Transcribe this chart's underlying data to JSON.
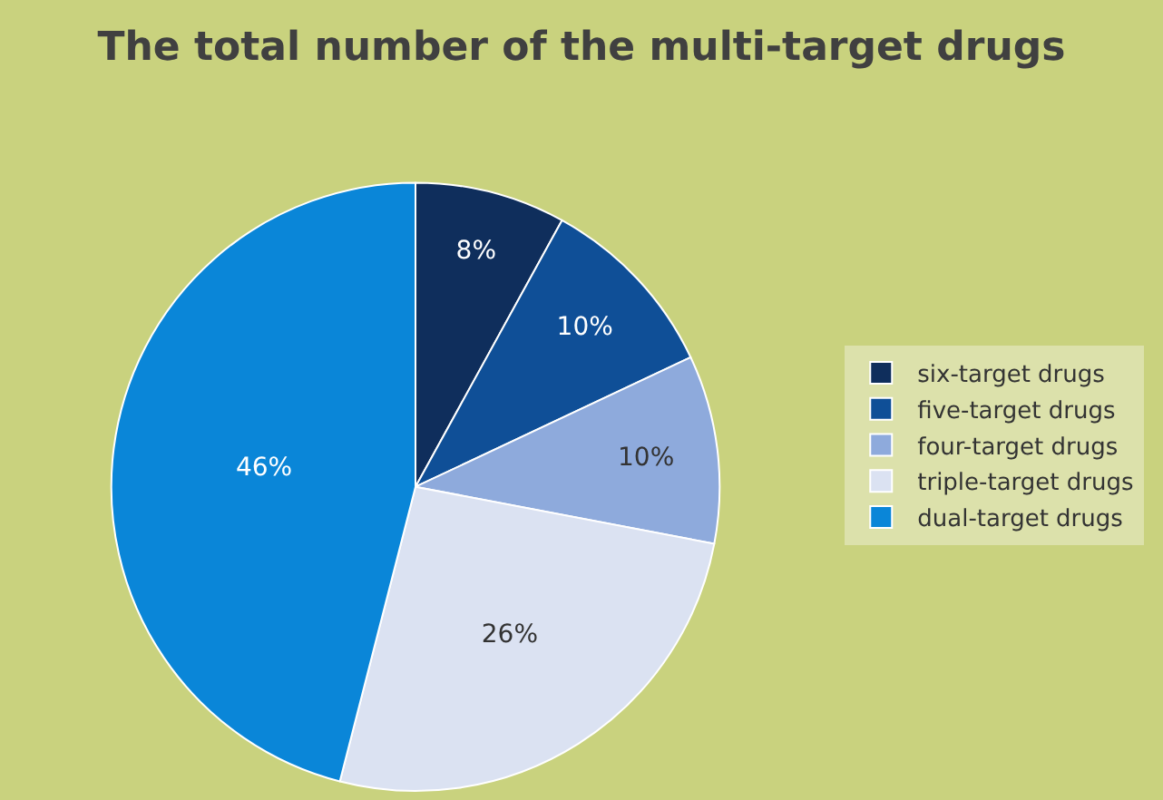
{
  "chart_data": {
    "type": "pie",
    "title": "The total number of the multi-target drugs",
    "categories": [
      "six-target drugs",
      "five-target drugs",
      "four-target drugs",
      "triple-target drugs",
      "dual-target drugs"
    ],
    "values": [
      8,
      10,
      10,
      26,
      46
    ],
    "value_labels": [
      "8%",
      "10%",
      "10%",
      "26%",
      "46%"
    ],
    "colors": [
      "#0f2e5c",
      "#0f4f97",
      "#8eaadc",
      "#dbe2f2",
      "#0a86d8"
    ],
    "legend": "right"
  }
}
